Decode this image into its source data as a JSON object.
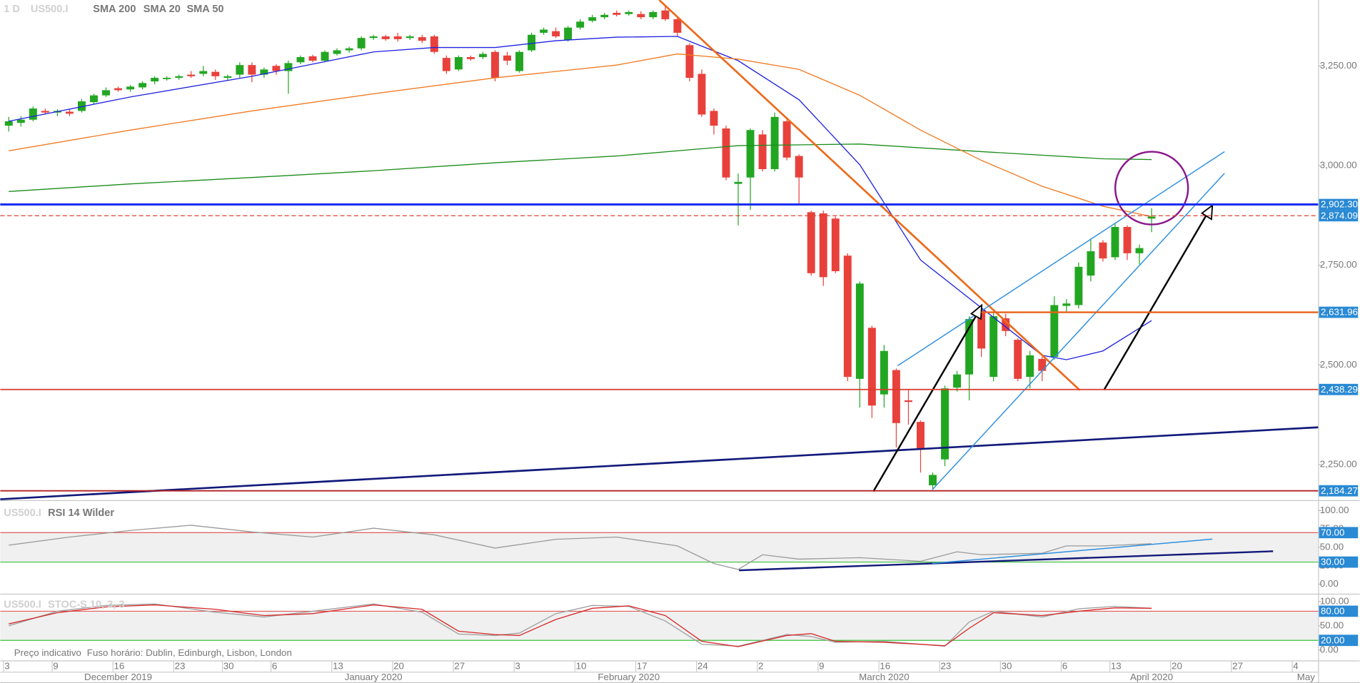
{
  "chart_data": [
    {
      "type": "candlestick",
      "timeframe": "1 D",
      "symbol": "US500.I",
      "up_color": "#22a622",
      "down_color": "#e8413c",
      "xlim": [
        -0.7,
        107.7
      ],
      "ylim": [
        2165.2,
        3415.2
      ],
      "yticks": [
        {
          "value": 2250,
          "label": "2,250.00"
        },
        {
          "value": 2500,
          "label": "2,500.00"
        },
        {
          "value": 2750,
          "label": "2,750.00"
        },
        {
          "value": 3000,
          "label": "3,000.00"
        },
        {
          "value": 3250,
          "label": "3,250.00"
        }
      ],
      "xticks": [
        {
          "value": 0,
          "label": "3"
        },
        {
          "value": 4,
          "label": "9"
        },
        {
          "value": 9,
          "label": "16"
        },
        {
          "value": 14,
          "label": "23"
        },
        {
          "value": 18,
          "label": "30"
        },
        {
          "value": 22,
          "label": "6"
        },
        {
          "value": 27,
          "label": "13"
        },
        {
          "value": 32,
          "label": "20"
        },
        {
          "value": 37,
          "label": "27"
        },
        {
          "value": 42,
          "label": "3"
        },
        {
          "value": 47,
          "label": "10"
        },
        {
          "value": 52,
          "label": "17"
        },
        {
          "value": 57,
          "label": "24"
        },
        {
          "value": 62,
          "label": "2"
        },
        {
          "value": 67,
          "label": "9"
        },
        {
          "value": 72,
          "label": "16"
        },
        {
          "value": 77,
          "label": "23"
        },
        {
          "value": 82,
          "label": "30"
        },
        {
          "value": 87,
          "label": "6"
        },
        {
          "value": 91,
          "label": "13"
        },
        {
          "value": 96,
          "label": "20"
        },
        {
          "value": 101,
          "label": "27"
        },
        {
          "value": 106,
          "label": "4"
        }
      ],
      "month_labels": [
        {
          "value": 9,
          "label": "December 2019"
        },
        {
          "value": 30,
          "label": "January 2020"
        },
        {
          "value": 51,
          "label": "February 2020"
        },
        {
          "value": 72,
          "label": "March 2020"
        },
        {
          "value": 94,
          "label": "April 2020"
        },
        {
          "value": 106.7,
          "label": "May"
        }
      ],
      "open": [
        3100,
        3107,
        3115,
        3137,
        3133,
        3135,
        3137,
        3159,
        3176,
        3194,
        3191,
        3196,
        3211,
        3217,
        3220,
        3228,
        3230,
        3235,
        3220,
        3228,
        3252,
        3228,
        3250,
        3237,
        3259,
        3274,
        3263,
        3280,
        3289,
        3294,
        3320,
        3324,
        3324,
        3320,
        3322,
        3324,
        3270,
        3241,
        3272,
        3272,
        3285,
        3276,
        3237,
        3289,
        3333,
        3337,
        3315,
        3346,
        3363,
        3372,
        3383,
        3380,
        3380,
        3372,
        3389,
        3367,
        3302,
        3230,
        3137,
        3093,
        2954,
        2970,
        3078,
        2991,
        3111,
        3024,
        2883,
        2880,
        2867,
        2774,
        2465,
        2593,
        2426,
        2487,
        2411,
        2357,
        2198,
        2263,
        2443,
        2476,
        2639,
        2470,
        2617,
        2563,
        2470,
        2515,
        2520,
        2648,
        2650,
        2724,
        2807,
        2770,
        2846,
        2780,
        2867
      ],
      "high": [
        3122,
        3124,
        3148,
        3143,
        3141,
        3141,
        3167,
        3180,
        3196,
        3198,
        3202,
        3211,
        3224,
        3224,
        3228,
        3237,
        3250,
        3241,
        3228,
        3259,
        3259,
        3246,
        3254,
        3263,
        3276,
        3278,
        3289,
        3294,
        3298,
        3324,
        3328,
        3328,
        3333,
        3328,
        3328,
        3328,
        3276,
        3276,
        3276,
        3285,
        3289,
        3285,
        3289,
        3333,
        3346,
        3346,
        3350,
        3367,
        3378,
        3383,
        3389,
        3389,
        3387,
        3389,
        3398,
        3372,
        3307,
        3241,
        3143,
        3100,
        2980,
        3093,
        3089,
        3133,
        3122,
        3028,
        2887,
        2887,
        2872,
        2780,
        2709,
        2598,
        2550,
        2491,
        2437,
        2361,
        2230,
        2448,
        2485,
        2622,
        2643,
        2633,
        2628,
        2567,
        2535,
        2520,
        2672,
        2665,
        2757,
        2817,
        2813,
        2854,
        2850,
        2802,
        2893
      ],
      "low": [
        3085,
        3098,
        3111,
        3128,
        3124,
        3124,
        3133,
        3154,
        3172,
        3185,
        3185,
        3191,
        3204,
        3213,
        3215,
        3220,
        3224,
        3215,
        3213,
        3220,
        3209,
        3220,
        3228,
        3180,
        3254,
        3259,
        3259,
        3276,
        3283,
        3289,
        3315,
        3313,
        3311,
        3315,
        3307,
        3280,
        3230,
        3237,
        3263,
        3267,
        3211,
        3252,
        3233,
        3285,
        3328,
        3320,
        3311,
        3341,
        3359,
        3367,
        3374,
        3376,
        3367,
        3367,
        3363,
        3324,
        3211,
        3122,
        3078,
        2963,
        2850,
        2889,
        2985,
        2985,
        3013,
        2904,
        2724,
        2698,
        2730,
        2459,
        2393,
        2367,
        2393,
        2293,
        2350,
        2230,
        2187,
        2246,
        2433,
        2411,
        2520,
        2459,
        2572,
        2459,
        2441,
        2459,
        2513,
        2633,
        2641,
        2709,
        2759,
        2763,
        2763,
        2752,
        2833
      ],
      "close": [
        3111,
        3115,
        3143,
        3133,
        3137,
        3130,
        3161,
        3176,
        3189,
        3189,
        3198,
        3207,
        3220,
        3220,
        3224,
        3224,
        3237,
        3224,
        3224,
        3252,
        3228,
        3241,
        3237,
        3257,
        3272,
        3263,
        3285,
        3289,
        3294,
        3320,
        3324,
        3317,
        3317,
        3324,
        3313,
        3285,
        3237,
        3272,
        3267,
        3280,
        3220,
        3263,
        3285,
        3328,
        3341,
        3324,
        3346,
        3361,
        3372,
        3378,
        3378,
        3385,
        3372,
        3385,
        3367,
        3333,
        3220,
        3128,
        3100,
        2970,
        2959,
        3089,
        2991,
        3122,
        3020,
        2970,
        2730,
        2720,
        2735,
        2470,
        2704,
        2398,
        2535,
        2354,
        2407,
        2291,
        2224,
        2441,
        2476,
        2615,
        2541,
        2622,
        2585,
        2465,
        2524,
        2485,
        2650,
        2654,
        2746,
        2785,
        2767,
        2846,
        2780,
        2793,
        2872
      ],
      "series": [
        {
          "name": "SMA 200",
          "color": "#1c8c1c",
          "x": [
            0,
            10,
            20,
            30,
            40,
            50,
            60,
            70,
            80,
            90,
            94
          ],
          "values": [
            2935,
            2954,
            2970,
            2987,
            3007,
            3024,
            3050,
            3054,
            3035,
            3017,
            3015
          ]
        },
        {
          "name": "SMA 20",
          "color": "#1f22e0",
          "x": [
            0,
            10,
            20,
            30,
            35,
            40,
            45,
            50,
            55,
            60,
            65,
            70,
            75,
            80,
            85,
            87,
            90,
            94
          ],
          "values": [
            3111,
            3172,
            3224,
            3285,
            3296,
            3296,
            3313,
            3322,
            3324,
            3263,
            3165,
            3002,
            2763,
            2643,
            2524,
            2513,
            2535,
            2611
          ]
        },
        {
          "name": "SMA 50",
          "color": "#f07a22",
          "x": [
            0,
            10,
            20,
            30,
            40,
            50,
            55,
            60,
            65,
            70,
            75,
            80,
            85,
            90,
            94
          ],
          "values": [
            3037,
            3089,
            3137,
            3180,
            3220,
            3252,
            3280,
            3267,
            3241,
            3176,
            3089,
            3013,
            2948,
            2898,
            2872
          ]
        }
      ],
      "levels": [
        {
          "value": 2902.3,
          "label": "2,902.30",
          "color": "#1a2cf0",
          "style": "solid",
          "width": 2.5
        },
        {
          "value": 2874.09,
          "label": "2,874.09",
          "color": "#e0402f",
          "style": "dashed",
          "width": 1
        },
        {
          "value": 2631.96,
          "label": "2,631.96",
          "color": "#e8601a",
          "style": "solid",
          "width": 2,
          "x_from": 80
        },
        {
          "value": 2438.29,
          "label": "2,438.29",
          "color": "#d93a2a",
          "style": "solid",
          "width": 1.5
        },
        {
          "value": 2184.27,
          "label": "2,184.27",
          "color": "#b22222",
          "style": "solid",
          "width": 1.5
        }
      ]
    },
    {
      "type": "line",
      "symbol": "US500.I",
      "title": "RSI 14 Wilder",
      "xlim": [
        -0.7,
        107.7
      ],
      "ylim": [
        -10.6,
        110.6
      ],
      "yticks": [
        {
          "value": 0,
          "label": "0.00"
        },
        {
          "value": 25,
          "label": "25.00"
        },
        {
          "value": 50,
          "label": "50.00"
        },
        {
          "value": 75,
          "label": "75.00"
        },
        {
          "value": 100,
          "label": "100.00"
        }
      ],
      "levels": [
        {
          "value": 70,
          "label": "70.00",
          "color": "#e05a5a"
        },
        {
          "value": 30,
          "label": "30.00",
          "color": "#3cc03c"
        }
      ],
      "series": [
        {
          "color": "#9a9a9a",
          "x": [
            0,
            5,
            10,
            15,
            20,
            25,
            30,
            35,
            40,
            45,
            50,
            55,
            58,
            60,
            62,
            65,
            70,
            75,
            78,
            80,
            85,
            87,
            90,
            94
          ],
          "values": [
            53,
            64,
            73,
            80,
            71,
            64,
            76,
            67,
            49,
            61,
            64,
            52,
            28,
            20,
            40,
            34,
            36,
            31,
            44,
            40,
            42,
            52,
            52,
            55
          ]
        }
      ]
    },
    {
      "type": "line",
      "symbol": "US500.I",
      "title": "STOC-S 10, 3, 3",
      "xlim": [
        -0.7,
        107.7
      ],
      "ylim": [
        -21.4,
        110.7
      ],
      "yticks": [
        {
          "value": 0,
          "label": "0.00"
        },
        {
          "value": 50,
          "label": "50.00"
        },
        {
          "value": 100,
          "label": "100.00"
        }
      ],
      "levels": [
        {
          "value": 80,
          "label": "80.00",
          "color": "#e05a5a"
        },
        {
          "value": 20,
          "label": "20.00",
          "color": "#3cc03c"
        }
      ],
      "series": [
        {
          "color": "#a0a0a0",
          "x": [
            0,
            4,
            8,
            12,
            17,
            21,
            25,
            30,
            34,
            37,
            40,
            42,
            45,
            48,
            51,
            54,
            57,
            60,
            64,
            66,
            68,
            72,
            77,
            79,
            81,
            85,
            88,
            91,
            94
          ],
          "values": [
            50,
            80,
            92,
            95,
            78,
            68,
            80,
            95,
            78,
            33,
            30,
            35,
            75,
            92,
            90,
            60,
            12,
            8,
            32,
            28,
            16,
            18,
            8,
            58,
            80,
            68,
            85,
            90,
            86
          ]
        },
        {
          "color": "#d62a2a",
          "x": [
            0,
            4,
            8,
            12,
            17,
            21,
            25,
            30,
            34,
            37,
            40,
            42,
            45,
            48,
            51,
            54,
            57,
            60,
            64,
            66,
            68,
            72,
            77,
            79,
            81,
            85,
            88,
            91,
            94
          ],
          "values": [
            54,
            77,
            89,
            93,
            84,
            71,
            75,
            93,
            84,
            39,
            32,
            30,
            63,
            86,
            91,
            71,
            18,
            7,
            30,
            34,
            18,
            16,
            9,
            45,
            77,
            71,
            80,
            87,
            86
          ]
        }
      ]
    }
  ],
  "footer": [
    "Preço indicativo",
    "Fuso horário: Dublin, Edinburgh, Lisbon, London"
  ]
}
